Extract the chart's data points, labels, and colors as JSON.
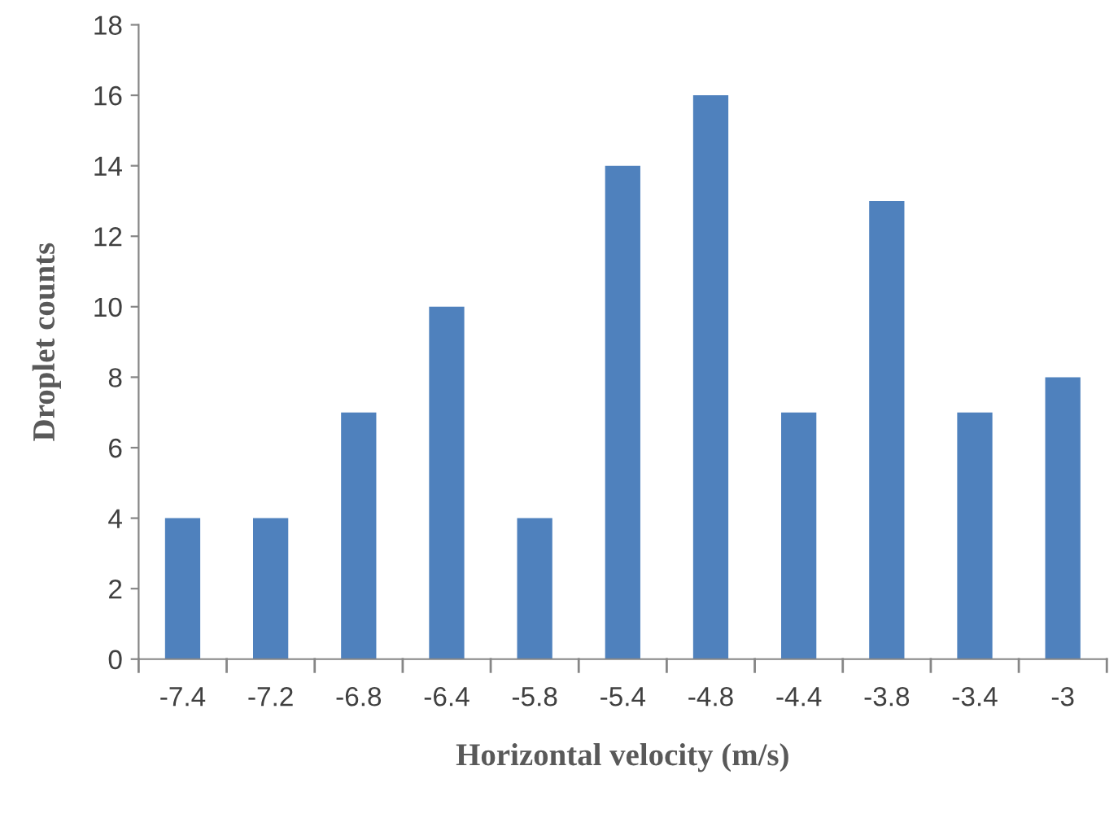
{
  "chart_data": {
    "type": "bar",
    "xlabel": "Horizontal velocity (m/s)",
    "ylabel": "Droplet counts",
    "categories": [
      "-7.4",
      "-7.2",
      "-6.8",
      "-6.4",
      "-5.8",
      "-5.4",
      "-4.8",
      "-4.4",
      "-3.8",
      "-3.4",
      "-3"
    ],
    "values": [
      4,
      4,
      7,
      10,
      4,
      14,
      16,
      7,
      13,
      7,
      8
    ],
    "color": "#4f81bd",
    "ylim": [
      0,
      18
    ],
    "yticks": [
      0,
      2,
      4,
      6,
      8,
      10,
      12,
      14,
      16,
      18
    ],
    "grid": false,
    "legend": false
  }
}
